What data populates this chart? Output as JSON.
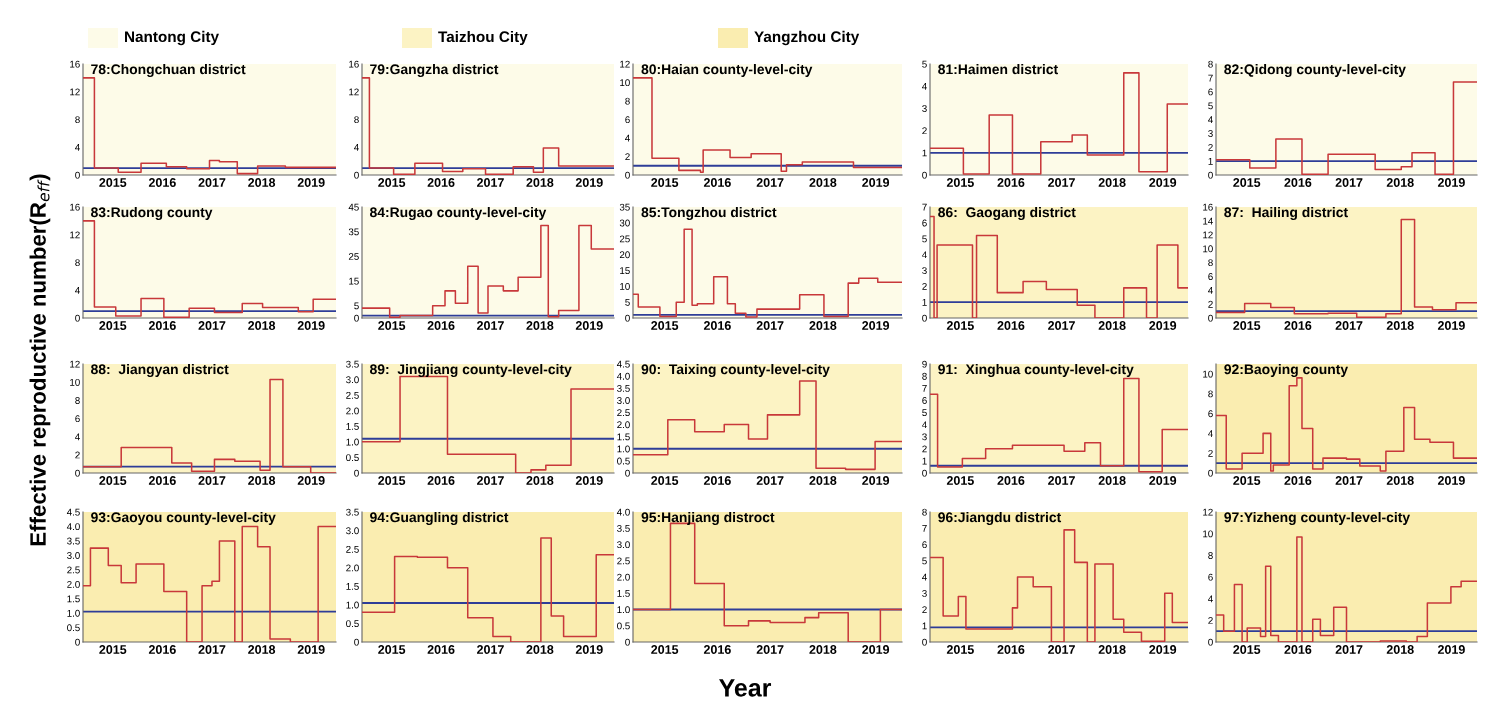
{
  "chart_data": [
    {
      "type": "other",
      "categories": [
        "Nantong City",
        "Taizhou City",
        "Yangzhou City"
      ],
      "colors": [
        "#fdfbe8",
        "#fcf3c4",
        "#faedb0"
      ],
      "xlabel": "Year",
      "ylabel": "Effective reproductive number(R$_{eff}$)"
    },
    {
      "type": "step",
      "title": "78:Chongchuan district",
      "xlim": [
        2014.4,
        2019.5
      ],
      "xticks": [
        2015,
        2016,
        2017,
        2018,
        2019
      ],
      "ylim": [
        0,
        16
      ],
      "yticks": [
        0,
        4,
        8,
        12,
        16
      ],
      "ref_lines": [
        {
          "axis": "y",
          "value": 1,
          "color": "#2e3d98"
        }
      ],
      "bands": [
        {
          "axis": "x",
          "from": 2014.4,
          "to": 2019.5,
          "color": "#fdfbe8"
        }
      ],
      "series": [
        {
          "color": "#c8383a",
          "x": [
            2014.4,
            2014.63,
            2015.11,
            2015.57,
            2016.08,
            2016.49,
            2016.95,
            2017.15,
            2017.51,
            2017.92,
            2018.48,
            2019.5
          ],
          "values": [
            14,
            1.0,
            0.4,
            1.7,
            1.2,
            0.9,
            2.1,
            1.9,
            0.2,
            1.3,
            1.1,
            1.1
          ]
        }
      ]
    },
    {
      "type": "step",
      "title": "79:Gangzha district",
      "xlim": [
        2014.4,
        2019.5
      ],
      "xticks": [
        2015,
        2016,
        2017,
        2018,
        2019
      ],
      "ylim": [
        0,
        16
      ],
      "yticks": [
        0,
        4,
        8,
        12,
        16
      ],
      "ref_lines": [
        {
          "axis": "y",
          "value": 1,
          "color": "#2e3d98"
        }
      ],
      "bands": [
        {
          "axis": "x",
          "from": 2014.4,
          "to": 2019.5,
          "color": "#fdfbe8"
        }
      ],
      "series": [
        {
          "color": "#c8383a",
          "x": [
            2014.4,
            2014.55,
            2015.04,
            2015.47,
            2016.03,
            2016.44,
            2016.9,
            2017.46,
            2017.87,
            2018.07,
            2018.38,
            2019.5
          ],
          "values": [
            14,
            1.0,
            0.1,
            1.7,
            0.5,
            0.9,
            0.1,
            1.2,
            0.4,
            3.9,
            1.3,
            1.3
          ]
        }
      ]
    },
    {
      "type": "step",
      "title": "80:Haian county-level-city",
      "xlim": [
        2014.4,
        2019.5
      ],
      "xticks": [
        2015,
        2016,
        2017,
        2018,
        2019
      ],
      "ylim": [
        0,
        12
      ],
      "yticks": [
        0,
        2,
        4,
        6,
        8,
        10,
        12
      ],
      "ref_lines": [
        {
          "axis": "y",
          "value": 1,
          "color": "#2e3d98"
        }
      ],
      "bands": [
        {
          "axis": "x",
          "from": 2014.4,
          "to": 2019.5,
          "color": "#fdfbe8"
        }
      ],
      "series": [
        {
          "color": "#c8383a",
          "x": [
            2014.4,
            2014.76,
            2015.27,
            2015.68,
            2015.73,
            2016.24,
            2016.64,
            2017.21,
            2017.31,
            2017.61,
            2018.58,
            2019.5
          ],
          "values": [
            10.5,
            1.8,
            0.5,
            0.3,
            2.7,
            1.9,
            2.3,
            0.4,
            1.1,
            1.4,
            0.8,
            0.8
          ]
        }
      ]
    },
    {
      "type": "step",
      "title": "81:Haimen district",
      "xlim": [
        2014.4,
        2019.5
      ],
      "xticks": [
        2015,
        2016,
        2017,
        2018,
        2019
      ],
      "ylim": [
        0,
        5
      ],
      "yticks": [
        0,
        1,
        2,
        3,
        4,
        5
      ],
      "ref_lines": [
        {
          "axis": "y",
          "value": 1,
          "color": "#2e3d98"
        }
      ],
      "bands": [
        {
          "axis": "x",
          "from": 2014.4,
          "to": 2019.5,
          "color": "#fdfbe8"
        }
      ],
      "series": [
        {
          "color": "#c8383a",
          "x": [
            2014.4,
            2015.06,
            2015.57,
            2016.03,
            2016.59,
            2017.21,
            2017.51,
            2018.23,
            2018.53,
            2019.09,
            2019.5
          ],
          "values": [
            1.2,
            0.05,
            2.7,
            0.05,
            1.5,
            1.8,
            0.9,
            4.6,
            0.15,
            3.2,
            3.2
          ]
        }
      ]
    },
    {
      "type": "step",
      "title": "82:Qidong county-level-city",
      "xlim": [
        2014.4,
        2019.5
      ],
      "xticks": [
        2015,
        2016,
        2017,
        2018,
        2019
      ],
      "ylim": [
        0,
        8
      ],
      "yticks": [
        0,
        1,
        2,
        3,
        4,
        5,
        6,
        7,
        8
      ],
      "ref_lines": [
        {
          "axis": "y",
          "value": 1,
          "color": "#2e3d98"
        }
      ],
      "bands": [
        {
          "axis": "x",
          "from": 2014.4,
          "to": 2019.5,
          "color": "#fdfbe8"
        }
      ],
      "series": [
        {
          "color": "#c8383a",
          "x": [
            2014.4,
            2015.06,
            2015.57,
            2016.08,
            2016.59,
            2017.51,
            2018.02,
            2018.23,
            2018.68,
            2019.04,
            2019.5
          ],
          "values": [
            1.1,
            0.5,
            2.6,
            0.05,
            1.5,
            0.4,
            0.6,
            1.6,
            0.05,
            6.7,
            6.7
          ]
        }
      ]
    },
    {
      "type": "step",
      "title": "83:Rudong county",
      "xlim": [
        2014.4,
        2019.5
      ],
      "xticks": [
        2015,
        2016,
        2017,
        2018,
        2019
      ],
      "ylim": [
        0,
        16
      ],
      "yticks": [
        0,
        4,
        8,
        12,
        16
      ],
      "ref_lines": [
        {
          "axis": "y",
          "value": 1,
          "color": "#2e3d98"
        }
      ],
      "bands": [
        {
          "axis": "x",
          "from": 2014.4,
          "to": 2019.5,
          "color": "#fdfbe8"
        }
      ],
      "series": [
        {
          "color": "#c8383a",
          "x": [
            2014.4,
            2014.63,
            2015.06,
            2015.57,
            2016.03,
            2016.54,
            2017.05,
            2017.61,
            2018.02,
            2018.74,
            2019.04,
            2019.5
          ],
          "values": [
            14,
            1.6,
            0.3,
            2.8,
            0.1,
            1.4,
            0.8,
            2.1,
            1.5,
            0.9,
            2.7,
            2.7
          ]
        }
      ]
    },
    {
      "type": "step",
      "title": "84:Rugao county-level-city",
      "xlim": [
        2014.4,
        2019.5
      ],
      "xticks": [
        2015,
        2016,
        2017,
        2018,
        2019
      ],
      "ylim": [
        0,
        45
      ],
      "yticks": [
        0,
        5,
        15,
        25,
        35,
        45
      ],
      "ref_lines": [
        {
          "axis": "y",
          "value": 1,
          "color": "#2e3d98"
        }
      ],
      "bands": [
        {
          "axis": "x",
          "from": 2014.4,
          "to": 2019.5,
          "color": "#fdfbe8"
        }
      ],
      "series": [
        {
          "color": "#c8383a",
          "x": [
            2014.4,
            2014.96,
            2015.17,
            2015.83,
            2016.08,
            2016.29,
            2016.54,
            2016.75,
            2016.95,
            2017.26,
            2017.56,
            2018.02,
            2018.17,
            2018.38,
            2018.79,
            2019.04,
            2019.5
          ],
          "values": [
            4,
            0.3,
            1,
            5,
            11,
            6,
            21,
            2,
            13,
            11,
            16.5,
            37.5,
            0.5,
            3,
            37.5,
            28,
            28
          ]
        }
      ]
    },
    {
      "type": "step",
      "title": "85:Tongzhou district",
      "xlim": [
        2014.4,
        2019.5
      ],
      "xticks": [
        2015,
        2016,
        2017,
        2018,
        2019
      ],
      "ylim": [
        0,
        35
      ],
      "yticks": [
        0,
        5,
        10,
        15,
        20,
        25,
        30,
        35
      ],
      "ref_lines": [
        {
          "axis": "y",
          "value": 1,
          "color": "#2e3d98"
        }
      ],
      "bands": [
        {
          "axis": "x",
          "from": 2014.4,
          "to": 2019.5,
          "color": "#fdfbe8"
        }
      ],
      "series": [
        {
          "color": "#c8383a",
          "x": [
            2014.4,
            2014.5,
            2014.91,
            2015.22,
            2015.37,
            2015.52,
            2015.62,
            2015.93,
            2016.19,
            2016.34,
            2016.54,
            2016.75,
            2017.56,
            2018.02,
            2018.48,
            2018.68,
            2019.04,
            2019.5
          ],
          "values": [
            7.5,
            3.5,
            0.5,
            5,
            28,
            4,
            4.5,
            13,
            4.5,
            1.5,
            0.3,
            2.8,
            7.3,
            0.5,
            11,
            12.5,
            11.3,
            11.3
          ]
        }
      ]
    },
    {
      "type": "step",
      "title": "86:  Gaogang district",
      "xlim": [
        2014.4,
        2019.5
      ],
      "xticks": [
        2015,
        2016,
        2017,
        2018,
        2019
      ],
      "ylim": [
        0,
        7
      ],
      "yticks": [
        0,
        1,
        2,
        3,
        4,
        5,
        6,
        7
      ],
      "ref_lines": [
        {
          "axis": "y",
          "value": 1,
          "color": "#2e3d98"
        }
      ],
      "bands": [
        {
          "axis": "x",
          "from": 2014.4,
          "to": 2019.5,
          "color": "#fcf3c4"
        }
      ],
      "series": [
        {
          "color": "#c8383a",
          "x": [
            2014.4,
            2014.48,
            2014.54,
            2015.24,
            2015.32,
            2015.73,
            2016.24,
            2016.7,
            2017.31,
            2017.66,
            2018.23,
            2018.68,
            2018.89,
            2019.3,
            2019.5
          ],
          "values": [
            6.4,
            0,
            4.6,
            0,
            5.2,
            1.6,
            2.3,
            1.8,
            0.8,
            0,
            1.9,
            0,
            4.6,
            1.9,
            1.9
          ]
        }
      ]
    },
    {
      "type": "step",
      "title": "87:  Hailing district",
      "xlim": [
        2014.4,
        2019.5
      ],
      "xticks": [
        2015,
        2016,
        2017,
        2018,
        2019
      ],
      "ylim": [
        0,
        16
      ],
      "yticks": [
        0,
        2,
        4,
        6,
        8,
        10,
        12,
        14,
        16
      ],
      "ref_lines": [
        {
          "axis": "y",
          "value": 1,
          "color": "#2e3d98"
        }
      ],
      "bands": [
        {
          "axis": "x",
          "from": 2014.4,
          "to": 2019.5,
          "color": "#fcf3c4"
        }
      ],
      "series": [
        {
          "color": "#c8383a",
          "x": [
            2014.4,
            2014.96,
            2015.47,
            2015.93,
            2016.59,
            2017.15,
            2017.72,
            2018.02,
            2018.28,
            2018.63,
            2019.09,
            2019.5
          ],
          "values": [
            0.8,
            2.1,
            1.5,
            0.6,
            0.7,
            0.1,
            0.6,
            14.2,
            1.6,
            1.2,
            2.2,
            2.2
          ]
        }
      ]
    },
    {
      "type": "step",
      "title": "88:  Jiangyan district",
      "xlim": [
        2014.4,
        2019.5
      ],
      "xticks": [
        2015,
        2016,
        2017,
        2018,
        2019
      ],
      "ylim": [
        0,
        12
      ],
      "yticks": [
        0,
        2,
        4,
        6,
        8,
        10,
        12
      ],
      "ref_lines": [
        {
          "axis": "y",
          "value": 0.7,
          "color": "#2e3d98"
        }
      ],
      "bands": [
        {
          "axis": "x",
          "from": 2014.4,
          "to": 2019.5,
          "color": "#fcf3c4"
        }
      ],
      "series": [
        {
          "color": "#c8383a",
          "x": [
            2014.4,
            2015.17,
            2016.19,
            2016.59,
            2017.05,
            2017.46,
            2017.97,
            2018.17,
            2018.43,
            2018.99,
            2019.5
          ],
          "values": [
            0.7,
            2.8,
            1.1,
            0.2,
            1.5,
            1.3,
            0.3,
            10.3,
            0.7,
            0,
            0
          ]
        }
      ]
    },
    {
      "type": "step",
      "title": "89:  Jingjiang county-level-city",
      "xlim": [
        2014.4,
        2019.5
      ],
      "xticks": [
        2015,
        2016,
        2017,
        2018,
        2019
      ],
      "ylim": [
        0,
        3.5
      ],
      "yticks": [
        0,
        0.5,
        {
          "value": 1,
          "label": "1.0"
        },
        1.5,
        {
          "value": 2,
          "label": "2.0"
        },
        2.5,
        {
          "value": 3,
          "label": "3.0"
        },
        3.5
      ],
      "ref_lines": [
        {
          "axis": "y",
          "value": 1.1,
          "color": "#2e3d98"
        }
      ],
      "bands": [
        {
          "axis": "x",
          "from": 2014.4,
          "to": 2019.5,
          "color": "#fcf3c4"
        }
      ],
      "series": [
        {
          "color": "#c8383a",
          "x": [
            2014.4,
            2015.17,
            2016.13,
            2017.51,
            2017.82,
            2018.12,
            2018.63,
            2019.5
          ],
          "values": [
            1.0,
            3.1,
            0.6,
            0,
            0.1,
            0.25,
            2.7,
            2.7
          ]
        }
      ]
    },
    {
      "type": "step",
      "title": "90:  Taixing county-level-city",
      "xlim": [
        2014.4,
        2019.5
      ],
      "xticks": [
        2015,
        2016,
        2017,
        2018,
        2019
      ],
      "ylim": [
        0,
        4.5
      ],
      "yticks": [
        0,
        0.5,
        {
          "value": 1,
          "label": "1.0"
        },
        1.5,
        {
          "value": 2,
          "label": "2.0"
        },
        2.5,
        {
          "value": 3,
          "label": "3.0"
        },
        3.5,
        {
          "value": 4,
          "label": "4.0"
        },
        4.5
      ],
      "ref_lines": [
        {
          "axis": "y",
          "value": 1,
          "color": "#2e3d98"
        }
      ],
      "bands": [
        {
          "axis": "x",
          "from": 2014.4,
          "to": 2019.5,
          "color": "#fcf3c4"
        }
      ],
      "series": [
        {
          "color": "#c8383a",
          "x": [
            2014.4,
            2015.06,
            2015.57,
            2016.13,
            2016.59,
            2016.95,
            2017.56,
            2017.87,
            2018.43,
            2018.99,
            2019.5
          ],
          "values": [
            0.75,
            2.2,
            1.7,
            2.0,
            1.4,
            2.4,
            3.8,
            0.2,
            0.15,
            1.3,
            1.3
          ]
        }
      ]
    },
    {
      "type": "step",
      "title": "91:  Xinghua county-level-city",
      "xlim": [
        2014.4,
        2019.5
      ],
      "xticks": [
        2015,
        2016,
        2017,
        2018,
        2019
      ],
      "ylim": [
        0,
        9
      ],
      "yticks": [
        0,
        1,
        2,
        3,
        4,
        5,
        6,
        7,
        8,
        9
      ],
      "ref_lines": [
        {
          "axis": "y",
          "value": 0.6,
          "color": "#2e3d98"
        }
      ],
      "bands": [
        {
          "axis": "x",
          "from": 2014.4,
          "to": 2019.5,
          "color": "#fcf3c4"
        }
      ],
      "series": [
        {
          "color": "#c8383a",
          "x": [
            2014.4,
            2014.55,
            2015.04,
            2015.5,
            2016.03,
            2017.05,
            2017.46,
            2017.77,
            2018.23,
            2018.53,
            2018.99,
            2019.5
          ],
          "values": [
            6.5,
            0.5,
            1.2,
            2.0,
            2.3,
            1.8,
            2.5,
            0.6,
            7.8,
            0.1,
            3.6,
            3.6
          ]
        }
      ]
    },
    {
      "type": "step",
      "title": "92:Baoying county",
      "xlim": [
        2014.4,
        2019.5
      ],
      "xticks": [
        2015,
        2016,
        2017,
        2018,
        2019
      ],
      "ylim": [
        0,
        11
      ],
      "yticks": [
        0,
        2,
        4,
        6,
        8,
        10
      ],
      "ref_lines": [
        {
          "axis": "y",
          "value": 1,
          "color": "#2e3d98"
        }
      ],
      "bands": [
        {
          "axis": "x",
          "from": 2014.4,
          "to": 2019.5,
          "color": "#faedb0"
        }
      ],
      "series": [
        {
          "color": "#c8383a",
          "x": [
            2014.4,
            2014.6,
            2014.91,
            2015.32,
            2015.47,
            2015.52,
            2015.83,
            2015.98,
            2016.08,
            2016.29,
            2016.49,
            2016.95,
            2017.21,
            2017.61,
            2017.72,
            2018.07,
            2018.28,
            2018.58,
            2019.04,
            2019.5
          ],
          "values": [
            5.8,
            0.4,
            2.0,
            4.0,
            0.2,
            0.8,
            8.8,
            9.6,
            4.5,
            0.4,
            1.5,
            1.4,
            0.7,
            0.2,
            2.2,
            6.6,
            3.4,
            3.1,
            1.5,
            1.5
          ]
        }
      ]
    },
    {
      "type": "step",
      "title": "93:Gaoyou county-level-city",
      "xlim": [
        2014.4,
        2019.5
      ],
      "xticks": [
        2015,
        2016,
        2017,
        2018,
        2019
      ],
      "ylim": [
        0,
        4.5
      ],
      "yticks": [
        0,
        0.5,
        {
          "value": 1,
          "label": "1.0"
        },
        1.5,
        {
          "value": 2,
          "label": "2.0"
        },
        2.5,
        {
          "value": 3,
          "label": "3.0"
        },
        3.5,
        {
          "value": 4,
          "label": "4.0"
        },
        4.5
      ],
      "ref_lines": [
        {
          "axis": "y",
          "value": 1.05,
          "color": "#2e3d98"
        }
      ],
      "bands": [
        {
          "axis": "x",
          "from": 2014.4,
          "to": 2019.5,
          "color": "#faedb0"
        }
      ],
      "series": [
        {
          "color": "#c8383a",
          "x": [
            2014.4,
            2014.55,
            2014.91,
            2015.17,
            2015.47,
            2016.03,
            2016.49,
            2016.8,
            2017.0,
            2017.15,
            2017.46,
            2017.61,
            2017.92,
            2018.17,
            2018.58,
            2019.14,
            2019.5
          ],
          "values": [
            1.95,
            3.25,
            2.65,
            2.05,
            2.7,
            1.75,
            0,
            1.95,
            2.1,
            3.5,
            0,
            4.0,
            3.3,
            0.1,
            0,
            4.0,
            4.0
          ]
        }
      ]
    },
    {
      "type": "step",
      "title": "94:Guangling district",
      "xlim": [
        2014.4,
        2019.5
      ],
      "xticks": [
        2015,
        2016,
        2017,
        2018,
        2019
      ],
      "ylim": [
        0,
        3.5
      ],
      "yticks": [
        0,
        0.5,
        {
          "value": 1,
          "label": "1.0"
        },
        1.5,
        {
          "value": 2,
          "label": "2.0"
        },
        2.5,
        {
          "value": 3,
          "label": "3.0"
        },
        3.5
      ],
      "ref_lines": [
        {
          "axis": "y",
          "value": 1.05,
          "color": "#2e3d98"
        }
      ],
      "bands": [
        {
          "axis": "x",
          "from": 2014.4,
          "to": 2019.5,
          "color": "#faedb0"
        }
      ],
      "series": [
        {
          "color": "#c8383a",
          "x": [
            2014.4,
            2015.06,
            2015.52,
            2016.13,
            2016.54,
            2017.05,
            2017.41,
            2018.02,
            2018.23,
            2018.48,
            2019.14,
            2019.5
          ],
          "values": [
            0.8,
            2.3,
            2.28,
            2.0,
            0.65,
            0.15,
            0,
            2.8,
            0.7,
            0.15,
            2.35,
            2.35
          ]
        }
      ]
    },
    {
      "type": "step",
      "title": "95:Hanjiang distroct",
      "xlim": [
        2014.4,
        2019.5
      ],
      "xticks": [
        2015,
        2016,
        2017,
        2018,
        2019
      ],
      "ylim": [
        0,
        4
      ],
      "yticks": [
        0,
        0.5,
        {
          "value": 1,
          "label": "1.0"
        },
        1.5,
        {
          "value": 2,
          "label": "2.0"
        },
        2.5,
        {
          "value": 3,
          "label": "3.0"
        },
        3.5,
        {
          "value": 4,
          "label": "4.0"
        }
      ],
      "ref_lines": [
        {
          "axis": "y",
          "value": 1,
          "color": "#2e3d98"
        }
      ],
      "bands": [
        {
          "axis": "x",
          "from": 2014.4,
          "to": 2019.5,
          "color": "#faedb0"
        }
      ],
      "series": [
        {
          "color": "#c8383a",
          "x": [
            2014.4,
            2015.11,
            2015.57,
            2016.13,
            2016.59,
            2017.0,
            2017.66,
            2017.92,
            2018.48,
            2019.09,
            2019.5
          ],
          "values": [
            1.0,
            3.65,
            1.8,
            0.5,
            0.65,
            0.6,
            0.75,
            0.9,
            0,
            1.0,
            1.0
          ]
        }
      ]
    },
    {
      "type": "step",
      "title": "96:Jiangdu district",
      "xlim": [
        2014.4,
        2019.5
      ],
      "xticks": [
        2015,
        2016,
        2017,
        2018,
        2019
      ],
      "ylim": [
        0,
        8
      ],
      "yticks": [
        0,
        1,
        2,
        3,
        4,
        5,
        6,
        7,
        8
      ],
      "ref_lines": [
        {
          "axis": "y",
          "value": 0.9,
          "color": "#2e3d98"
        }
      ],
      "bands": [
        {
          "axis": "x",
          "from": 2014.4,
          "to": 2019.5,
          "color": "#faedb0"
        }
      ],
      "series": [
        {
          "color": "#c8383a",
          "x": [
            2014.4,
            2014.66,
            2014.96,
            2015.11,
            2016.03,
            2016.13,
            2016.44,
            2016.8,
            2017.05,
            2017.26,
            2017.51,
            2017.66,
            2018.02,
            2018.23,
            2018.58,
            2019.04,
            2019.19,
            2019.5
          ],
          "values": [
            5.2,
            1.6,
            2.8,
            0.8,
            2.1,
            4.0,
            3.4,
            0,
            6.9,
            4.9,
            0,
            4.8,
            1.4,
            0.6,
            0.05,
            3.0,
            1.2,
            1.2
          ]
        }
      ]
    },
    {
      "type": "step",
      "title": "97:Yizheng county-level-city",
      "xlim": [
        2014.4,
        2019.5
      ],
      "xticks": [
        2015,
        2016,
        2017,
        2018,
        2019
      ],
      "ylim": [
        0,
        12
      ],
      "yticks": [
        0,
        2,
        4,
        6,
        8,
        10,
        12
      ],
      "ref_lines": [
        {
          "axis": "y",
          "value": 1,
          "color": "#2e3d98"
        }
      ],
      "bands": [
        {
          "axis": "x",
          "from": 2014.4,
          "to": 2019.5,
          "color": "#faedb0"
        }
      ],
      "series": [
        {
          "color": "#c8383a",
          "x": [
            2014.4,
            2014.55,
            2014.76,
            2014.91,
            2015.01,
            2015.27,
            2015.37,
            2015.47,
            2015.62,
            2015.98,
            2016.08,
            2016.29,
            2016.44,
            2016.7,
            2016.95,
            2017.61,
            2018.12,
            2018.33,
            2018.53,
            2018.99,
            2019.19,
            2019.5
          ],
          "values": [
            2.5,
            1.0,
            5.3,
            0,
            1.3,
            0.5,
            7.0,
            0.6,
            0,
            9.7,
            0,
            2.1,
            0.6,
            3.2,
            0,
            0.1,
            0,
            0.5,
            3.6,
            5.1,
            5.6,
            5.6
          ]
        }
      ]
    }
  ]
}
